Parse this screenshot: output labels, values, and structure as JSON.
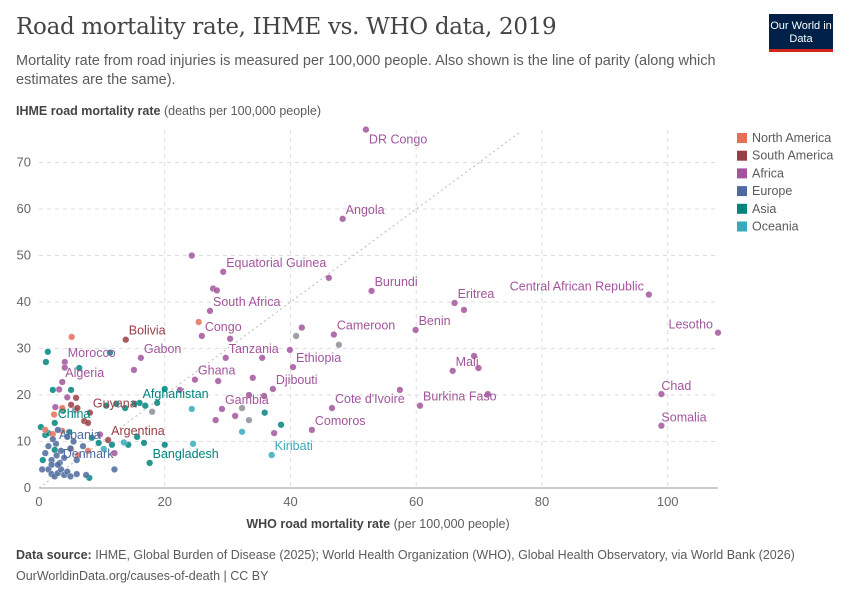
{
  "header": {
    "title": "Road mortality rate, IHME vs. WHO data, 2019",
    "subtitle": "Mortality rate from road injuries is measured per 100,000 people. Also shown is the line of parity (along which estimates are the same).",
    "logo": "Our World in Data"
  },
  "footer": {
    "source_label": "Data source:",
    "source": "IHME, Global Burden of Disease (2025); World Health Organization (WHO), Global Health Observatory, via World Bank (2026)",
    "link": "OurWorldinData.org/causes-of-death | CC BY"
  },
  "chart_data": {
    "type": "scatter",
    "ylabel_bold": "IHME road mortality rate",
    "ylabel_unit": "(deaths per 100,000 people)",
    "xlabel_bold": "WHO road mortality rate",
    "xlabel_unit": "(per 100,000 people)",
    "xlim": [
      0,
      108
    ],
    "ylim": [
      0,
      77
    ],
    "xticks": [
      0,
      20,
      40,
      60,
      80,
      100
    ],
    "yticks": [
      0,
      10,
      20,
      30,
      40,
      50,
      60,
      70
    ],
    "grid": true,
    "parity_line": true,
    "legend_placement": "right",
    "legend": [
      {
        "name": "North America",
        "color": "#e56e5a"
      },
      {
        "name": "South America",
        "color": "#9a3e45"
      },
      {
        "name": "Africa",
        "color": "#a2559c"
      },
      {
        "name": "Europe",
        "color": "#4c6a9c"
      },
      {
        "name": "Asia",
        "color": "#00847e"
      },
      {
        "name": "Oceania",
        "color": "#38aaba"
      }
    ],
    "no_region_color": "#8a8f99",
    "points": [
      [
        52,
        77.1,
        2,
        "DR Congo"
      ],
      [
        48.3,
        57.9,
        2,
        "Angola"
      ],
      [
        29.3,
        46.5,
        2,
        "Equatorial Guinea"
      ],
      [
        52.9,
        42.4,
        2,
        "Burundi"
      ],
      [
        66.1,
        39.8,
        2,
        "Eritrea"
      ],
      [
        97,
        41.6,
        2,
        "Central African Republic"
      ],
      [
        108,
        33.4,
        2,
        "Lesotho"
      ],
      [
        27.2,
        38.1,
        2,
        "South Africa"
      ],
      [
        25.9,
        32.7,
        2,
        "Congo"
      ],
      [
        46.9,
        33,
        2,
        "Cameroon"
      ],
      [
        59.9,
        34,
        2,
        "Benin"
      ],
      [
        13.8,
        31.9,
        1,
        "Bolivia"
      ],
      [
        16.2,
        28,
        2,
        "Gabon"
      ],
      [
        4.1,
        27.1,
        2,
        "Morocco"
      ],
      [
        29.7,
        28,
        2,
        "Tanzania"
      ],
      [
        40.4,
        26,
        2,
        "Ethiopia"
      ],
      [
        65.8,
        25.2,
        2,
        "Mali"
      ],
      [
        24.8,
        23.3,
        2,
        "Ghana"
      ],
      [
        37.2,
        21.3,
        2,
        "Djibouti"
      ],
      [
        99,
        20.2,
        2,
        "Chad"
      ],
      [
        3.7,
        22.8,
        2,
        "Algeria"
      ],
      [
        16,
        18.3,
        4,
        "Afghanistan"
      ],
      [
        46.6,
        17.2,
        2,
        "Cote d'Ivoire"
      ],
      [
        60.6,
        17.7,
        2,
        "Burkina Faso"
      ],
      [
        8.1,
        16.2,
        1,
        "Guyana"
      ],
      [
        29.1,
        17,
        2,
        "Gambia"
      ],
      [
        43.4,
        12.5,
        2,
        "Comoros"
      ],
      [
        99,
        13.4,
        2,
        "Somalia"
      ],
      [
        2.5,
        14,
        4,
        "China"
      ],
      [
        11,
        10.3,
        1,
        "Argentina"
      ],
      [
        2.7,
        9.5,
        3,
        "Albania"
      ],
      [
        17.6,
        5.4,
        4,
        "Bangladesh"
      ],
      [
        37,
        7.1,
        5,
        "Kiribati"
      ],
      [
        3.3,
        5.4,
        3,
        "Denmark"
      ],
      [
        24.3,
        50,
        2
      ],
      [
        27.7,
        42.9,
        2
      ],
      [
        28.3,
        42.5,
        2
      ],
      [
        46.1,
        45.2,
        2
      ],
      [
        67.6,
        38.3,
        2
      ],
      [
        30.4,
        32.1,
        2
      ],
      [
        39.9,
        29.7,
        2
      ],
      [
        41.8,
        34.5,
        2
      ],
      [
        35.5,
        28,
        2
      ],
      [
        69.2,
        28.4,
        2
      ],
      [
        69.9,
        25.8,
        2
      ],
      [
        71.4,
        20.2,
        2
      ],
      [
        57.4,
        21.1,
        2
      ],
      [
        22.4,
        21.1,
        2
      ],
      [
        28.5,
        23,
        2
      ],
      [
        34,
        23.7,
        2
      ],
      [
        35.8,
        19.8,
        2
      ],
      [
        33.4,
        20,
        2
      ],
      [
        28.1,
        14.6,
        2
      ],
      [
        31.2,
        15.5,
        2
      ],
      [
        37.4,
        11.8,
        2
      ],
      [
        15.1,
        25.4,
        2
      ],
      [
        4.1,
        25.9,
        2
      ],
      [
        3.2,
        21.2,
        2
      ],
      [
        2.6,
        17.4,
        2
      ],
      [
        4.5,
        19.5,
        2
      ],
      [
        9.7,
        11.5,
        2
      ],
      [
        12,
        7.5,
        2
      ],
      [
        1.4,
        29.3,
        4
      ],
      [
        1.1,
        27.1,
        4
      ],
      [
        11.3,
        29.1,
        4
      ],
      [
        6.4,
        25.8,
        4
      ],
      [
        2.2,
        21.1,
        4
      ],
      [
        20,
        21.3,
        4
      ],
      [
        18.8,
        18.3,
        4
      ],
      [
        15.2,
        18.1,
        4
      ],
      [
        12.3,
        18.1,
        4
      ],
      [
        10.7,
        17.7,
        4
      ],
      [
        16.9,
        17.7,
        4
      ],
      [
        13.7,
        17.2,
        4
      ],
      [
        5.1,
        21.1,
        4
      ],
      [
        3.8,
        16.6,
        4
      ],
      [
        1,
        11.4,
        4
      ],
      [
        0.3,
        13.1,
        4
      ],
      [
        2.5,
        8.2,
        4
      ],
      [
        0.6,
        6,
        4
      ],
      [
        16.7,
        9.7,
        4
      ],
      [
        20,
        9.3,
        4
      ],
      [
        14.2,
        9.3,
        4
      ],
      [
        9.5,
        9.7,
        4
      ],
      [
        11.6,
        9.3,
        4
      ],
      [
        15.6,
        11,
        4
      ],
      [
        35.9,
        16.2,
        4
      ],
      [
        38.5,
        13.6,
        4
      ],
      [
        8.4,
        10.8,
        4
      ],
      [
        8,
        2.2,
        4
      ],
      [
        1.5,
        11.8,
        4
      ],
      [
        4.8,
        12,
        4
      ],
      [
        24.3,
        17,
        5
      ],
      [
        32.3,
        12.1,
        5
      ],
      [
        10.3,
        8.4,
        5
      ],
      [
        24.5,
        9.5,
        5
      ],
      [
        13.5,
        9.8,
        5
      ],
      [
        40.9,
        32.7,
        6
      ],
      [
        47.7,
        30.8,
        6
      ],
      [
        32.3,
        17.2,
        6
      ],
      [
        33.4,
        14.6,
        6
      ],
      [
        18,
        16.4,
        6
      ],
      [
        5.7,
        16.8,
        6
      ],
      [
        5.2,
        32.5,
        0
      ],
      [
        25.4,
        35.7,
        0
      ],
      [
        2.2,
        11.6,
        0
      ],
      [
        3.7,
        12.3,
        0
      ],
      [
        5.1,
        8.4,
        0
      ],
      [
        7.8,
        8,
        0
      ],
      [
        3.7,
        17.2,
        0
      ],
      [
        2.4,
        15.8,
        0
      ],
      [
        1,
        12.5,
        0
      ],
      [
        6.2,
        7,
        0
      ],
      [
        5.1,
        17.9,
        1
      ],
      [
        6.1,
        17.2,
        1
      ],
      [
        7.2,
        14.4,
        1
      ],
      [
        7.8,
        14,
        1
      ],
      [
        5.9,
        19.4,
        1
      ],
      [
        1.5,
        4,
        3
      ],
      [
        2,
        3,
        3
      ],
      [
        2.5,
        2.5,
        3
      ],
      [
        3,
        3.2,
        3
      ],
      [
        3.5,
        4,
        3
      ],
      [
        4,
        2.8,
        3
      ],
      [
        4.5,
        3.5,
        3
      ],
      [
        5,
        2.5,
        3
      ],
      [
        6,
        3,
        3
      ],
      [
        7.5,
        2.8,
        3
      ],
      [
        2,
        6,
        3
      ],
      [
        2.8,
        7,
        3
      ],
      [
        3.5,
        8,
        3
      ],
      [
        4,
        6.5,
        3
      ],
      [
        1.5,
        9,
        3
      ],
      [
        2.2,
        10.5,
        3
      ],
      [
        5,
        8.5,
        3
      ],
      [
        5.5,
        10,
        3
      ],
      [
        6,
        6,
        3
      ],
      [
        3,
        5,
        3
      ],
      [
        1,
        7.5,
        3
      ],
      [
        4.5,
        11,
        3
      ],
      [
        3,
        12.5,
        3
      ],
      [
        2,
        5,
        3
      ],
      [
        12,
        4,
        3
      ],
      [
        7,
        9,
        3
      ],
      [
        0.5,
        4,
        3
      ]
    ]
  }
}
